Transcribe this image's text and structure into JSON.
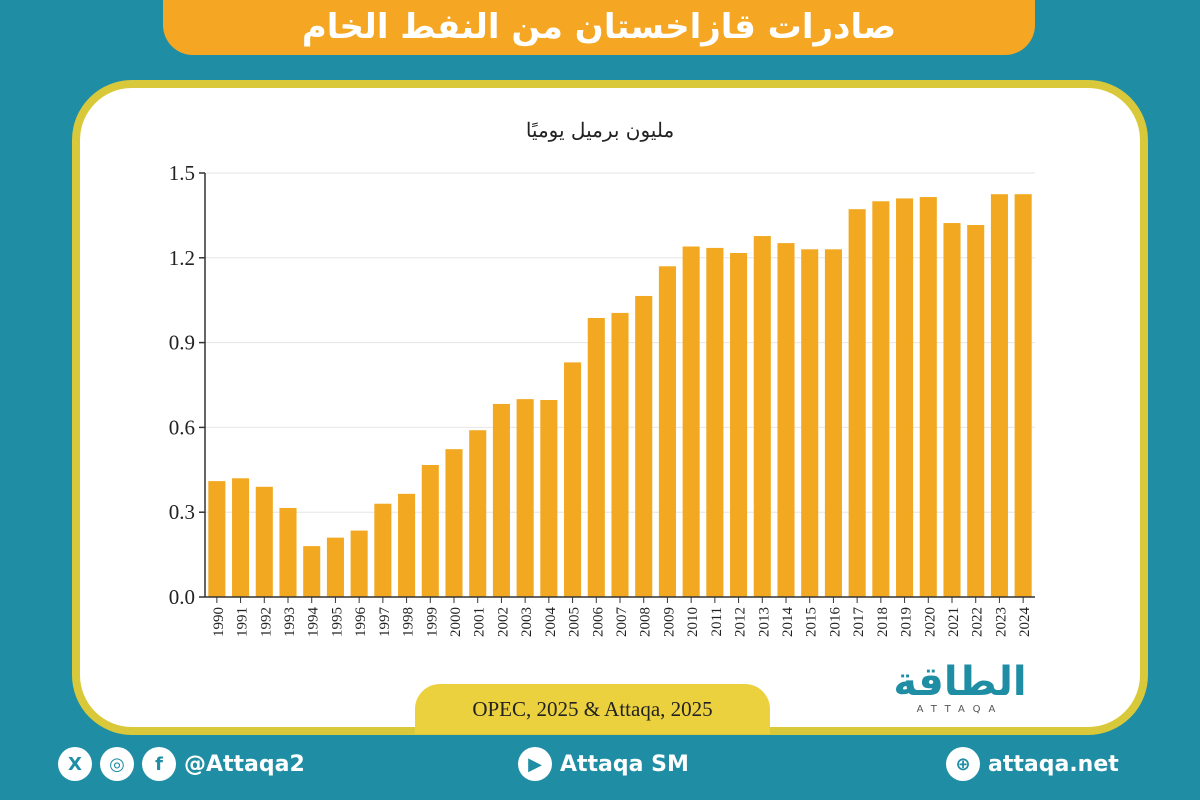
{
  "title": "صادرات قازاخستان من النفط الخام",
  "source": "OPEC, 2025 & Attaqa, 2025",
  "logo": {
    "arabic": "الطاقة",
    "latin": "ATTAQA"
  },
  "footer": {
    "social_handle": "@Attaqa2",
    "youtube": "Attaqa SM",
    "website": "attaqa.net"
  },
  "icons": [
    "x-icon",
    "instagram-icon",
    "facebook-icon",
    "youtube-icon",
    "globe-icon"
  ],
  "colors": {
    "background": "#1f8ea5",
    "banner": "#f5a623",
    "bar": "#f2a921",
    "frame": "#d9c93a"
  },
  "chart_data": {
    "type": "bar",
    "ylabel": "مليون برميل يوميًا",
    "ylim": [
      0,
      1.5
    ],
    "yticks": [
      "0.0",
      "0.3",
      "0.6",
      "0.9",
      "1.2",
      "1.5"
    ],
    "grid": true,
    "categories": [
      "1990",
      "1991",
      "1992",
      "1993",
      "1994",
      "1995",
      "1996",
      "1997",
      "1998",
      "1999",
      "2000",
      "2001",
      "2002",
      "2003",
      "2004",
      "2005",
      "2006",
      "2007",
      "2008",
      "2009",
      "2010",
      "2011",
      "2012",
      "2013",
      "2014",
      "2015",
      "2016",
      "2017",
      "2018",
      "2019",
      "2020",
      "2021",
      "2022",
      "2023",
      "2024"
    ],
    "values": [
      0.41,
      0.42,
      0.39,
      0.315,
      0.18,
      0.21,
      0.235,
      0.33,
      0.365,
      0.467,
      0.523,
      0.59,
      0.683,
      0.7,
      0.697,
      0.83,
      0.987,
      1.005,
      1.065,
      1.17,
      1.24,
      1.235,
      1.217,
      1.277,
      1.252,
      1.23,
      1.23,
      1.372,
      1.4,
      1.41,
      1.415,
      1.323,
      1.316,
      1.425,
      1.425
    ]
  }
}
